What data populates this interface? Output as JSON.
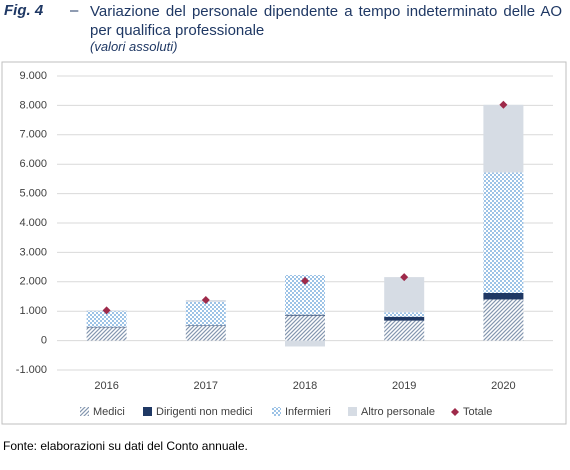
{
  "chart_data": {
    "type": "bar",
    "stacked": true,
    "fig_label": "Fig. 4",
    "dash": "–",
    "title": "Variazione del personale dipendente a tempo indeterminato delle AO per qualifica professionale",
    "subtitle": "(valori assoluti)",
    "source": "Fonte: elaborazioni su dati del Conto annuale.",
    "categories": [
      "2016",
      "2017",
      "2018",
      "2019",
      "2020"
    ],
    "series": [
      {
        "name": "Medici",
        "color": "#8497b0",
        "pattern": "hatch",
        "values": [
          450,
          500,
          850,
          680,
          1400
        ]
      },
      {
        "name": "Dirigenti non medici",
        "color": "#1f3864",
        "pattern": "solid",
        "values": [
          20,
          20,
          30,
          130,
          220
        ]
      },
      {
        "name": "Infermieri",
        "color": "#9dc3e6",
        "pattern": "dots",
        "values": [
          530,
          800,
          1350,
          150,
          4100
        ]
      },
      {
        "name": "Altro personale",
        "color": "#d6dce4",
        "pattern": "solid",
        "values": [
          30,
          60,
          -200,
          1200,
          2300
        ]
      }
    ],
    "total": {
      "name": "Totale",
      "color": "#9e2a4a",
      "marker": "diamond",
      "values": [
        1030,
        1380,
        2030,
        2160,
        8020
      ]
    },
    "ylim": [
      -1000,
      9000
    ],
    "yticks": [
      {
        "value": -1000,
        "label": "-1.000"
      },
      0,
      {
        "value": 1000,
        "label": "1.000"
      },
      {
        "value": 2000,
        "label": "2.000"
      },
      {
        "value": 3000,
        "label": "3.000"
      },
      {
        "value": 4000,
        "label": "4.000"
      },
      {
        "value": 5000,
        "label": "5.000"
      },
      {
        "value": 6000,
        "label": "6.000"
      },
      {
        "value": 7000,
        "label": "7.000"
      },
      {
        "value": 8000,
        "label": "8.000"
      },
      {
        "value": 9000,
        "label": "9.000"
      }
    ],
    "grid": true,
    "legend": "bottom"
  }
}
